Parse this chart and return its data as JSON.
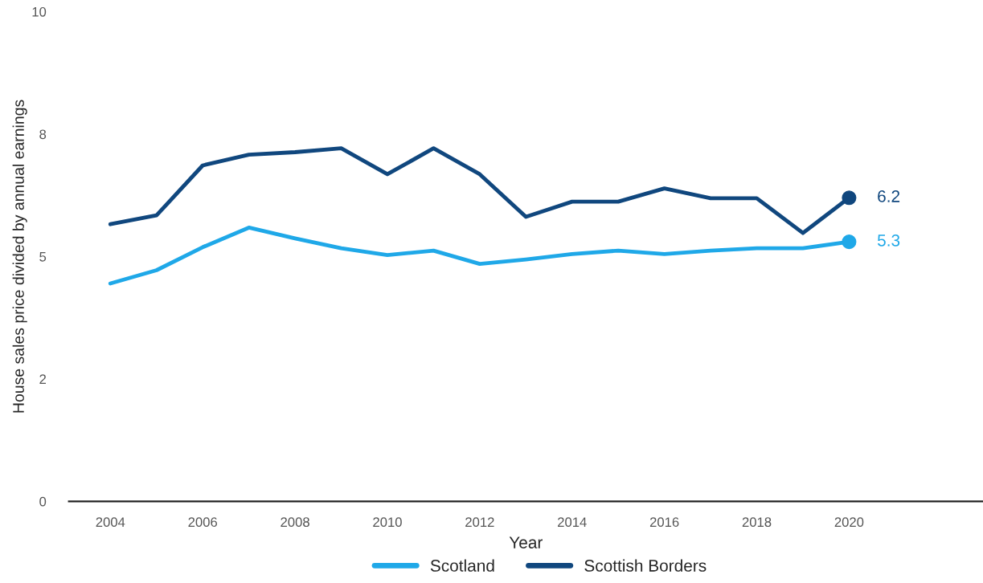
{
  "chart_data": {
    "type": "line",
    "xlabel": "Year",
    "ylabel": "House sales price divided by annual earnings",
    "x": [
      2004,
      2005,
      2006,
      2007,
      2008,
      2009,
      2010,
      2011,
      2012,
      2013,
      2014,
      2015,
      2016,
      2017,
      2018,
      2019,
      2020
    ],
    "series": [
      {
        "name": "Scotland",
        "color": "#1fa8e8",
        "values": [
          4.45,
          4.72,
          5.19,
          5.59,
          5.37,
          5.17,
          5.03,
          5.12,
          4.85,
          4.94,
          5.05,
          5.12,
          5.05,
          5.12,
          5.17,
          5.17,
          5.3
        ]
      },
      {
        "name": "Scottish Borders",
        "color": "#10477e",
        "values": [
          5.66,
          5.84,
          6.86,
          7.08,
          7.13,
          7.21,
          6.68,
          7.21,
          6.68,
          5.81,
          6.12,
          6.12,
          6.39,
          6.19,
          6.19,
          5.48,
          6.2
        ]
      }
    ],
    "annotations": [
      {
        "text": "5.3",
        "x": 2020,
        "y": 5.3
      },
      {
        "text": "6.2",
        "x": 2020,
        "y": 6.2
      }
    ],
    "xlim": [
      2003.1,
      2022.9
    ],
    "xticks": [
      2004,
      2006,
      2008,
      2010,
      2012,
      2014,
      2016,
      2018,
      2020
    ],
    "ylim": [
      0,
      10
    ],
    "yticks": [
      0,
      {
        "value": 2.5,
        "label": "2"
      },
      5,
      {
        "value": 7.5,
        "label": "8"
      },
      10
    ],
    "grid": false,
    "legend": "bottom",
    "line_style": "solid",
    "marker": "none"
  }
}
